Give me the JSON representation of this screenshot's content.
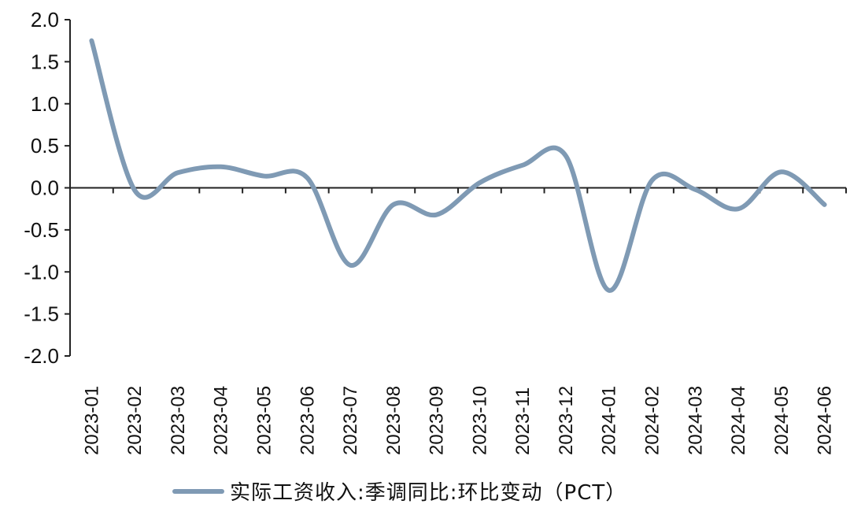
{
  "chart_data": {
    "type": "line",
    "title": "",
    "xlabel": "",
    "ylabel": "",
    "categories": [
      "2023-01",
      "2023-02",
      "2023-03",
      "2023-04",
      "2023-05",
      "2023-06",
      "2023-07",
      "2023-08",
      "2023-09",
      "2023-10",
      "2023-11",
      "2023-12",
      "2024-01",
      "2024-02",
      "2024-03",
      "2024-04",
      "2024-05",
      "2024-06"
    ],
    "series": [
      {
        "name": "实际工资收入:季调同比:环比变动（PCT）",
        "color": "#7f9ab4",
        "values": [
          1.75,
          -0.03,
          0.18,
          0.25,
          0.14,
          0.12,
          -0.92,
          -0.2,
          -0.32,
          0.06,
          0.27,
          0.38,
          -1.22,
          0.09,
          -0.02,
          -0.25,
          0.19,
          -0.2
        ]
      }
    ],
    "ylim": [
      -2.0,
      2.0
    ],
    "yticks": [
      "2.0",
      "1.5",
      "1.0",
      "0.5",
      "0.0",
      "-0.5",
      "-1.0",
      "-1.5",
      "-2.0"
    ],
    "grid": false,
    "legend_position": "bottom"
  }
}
